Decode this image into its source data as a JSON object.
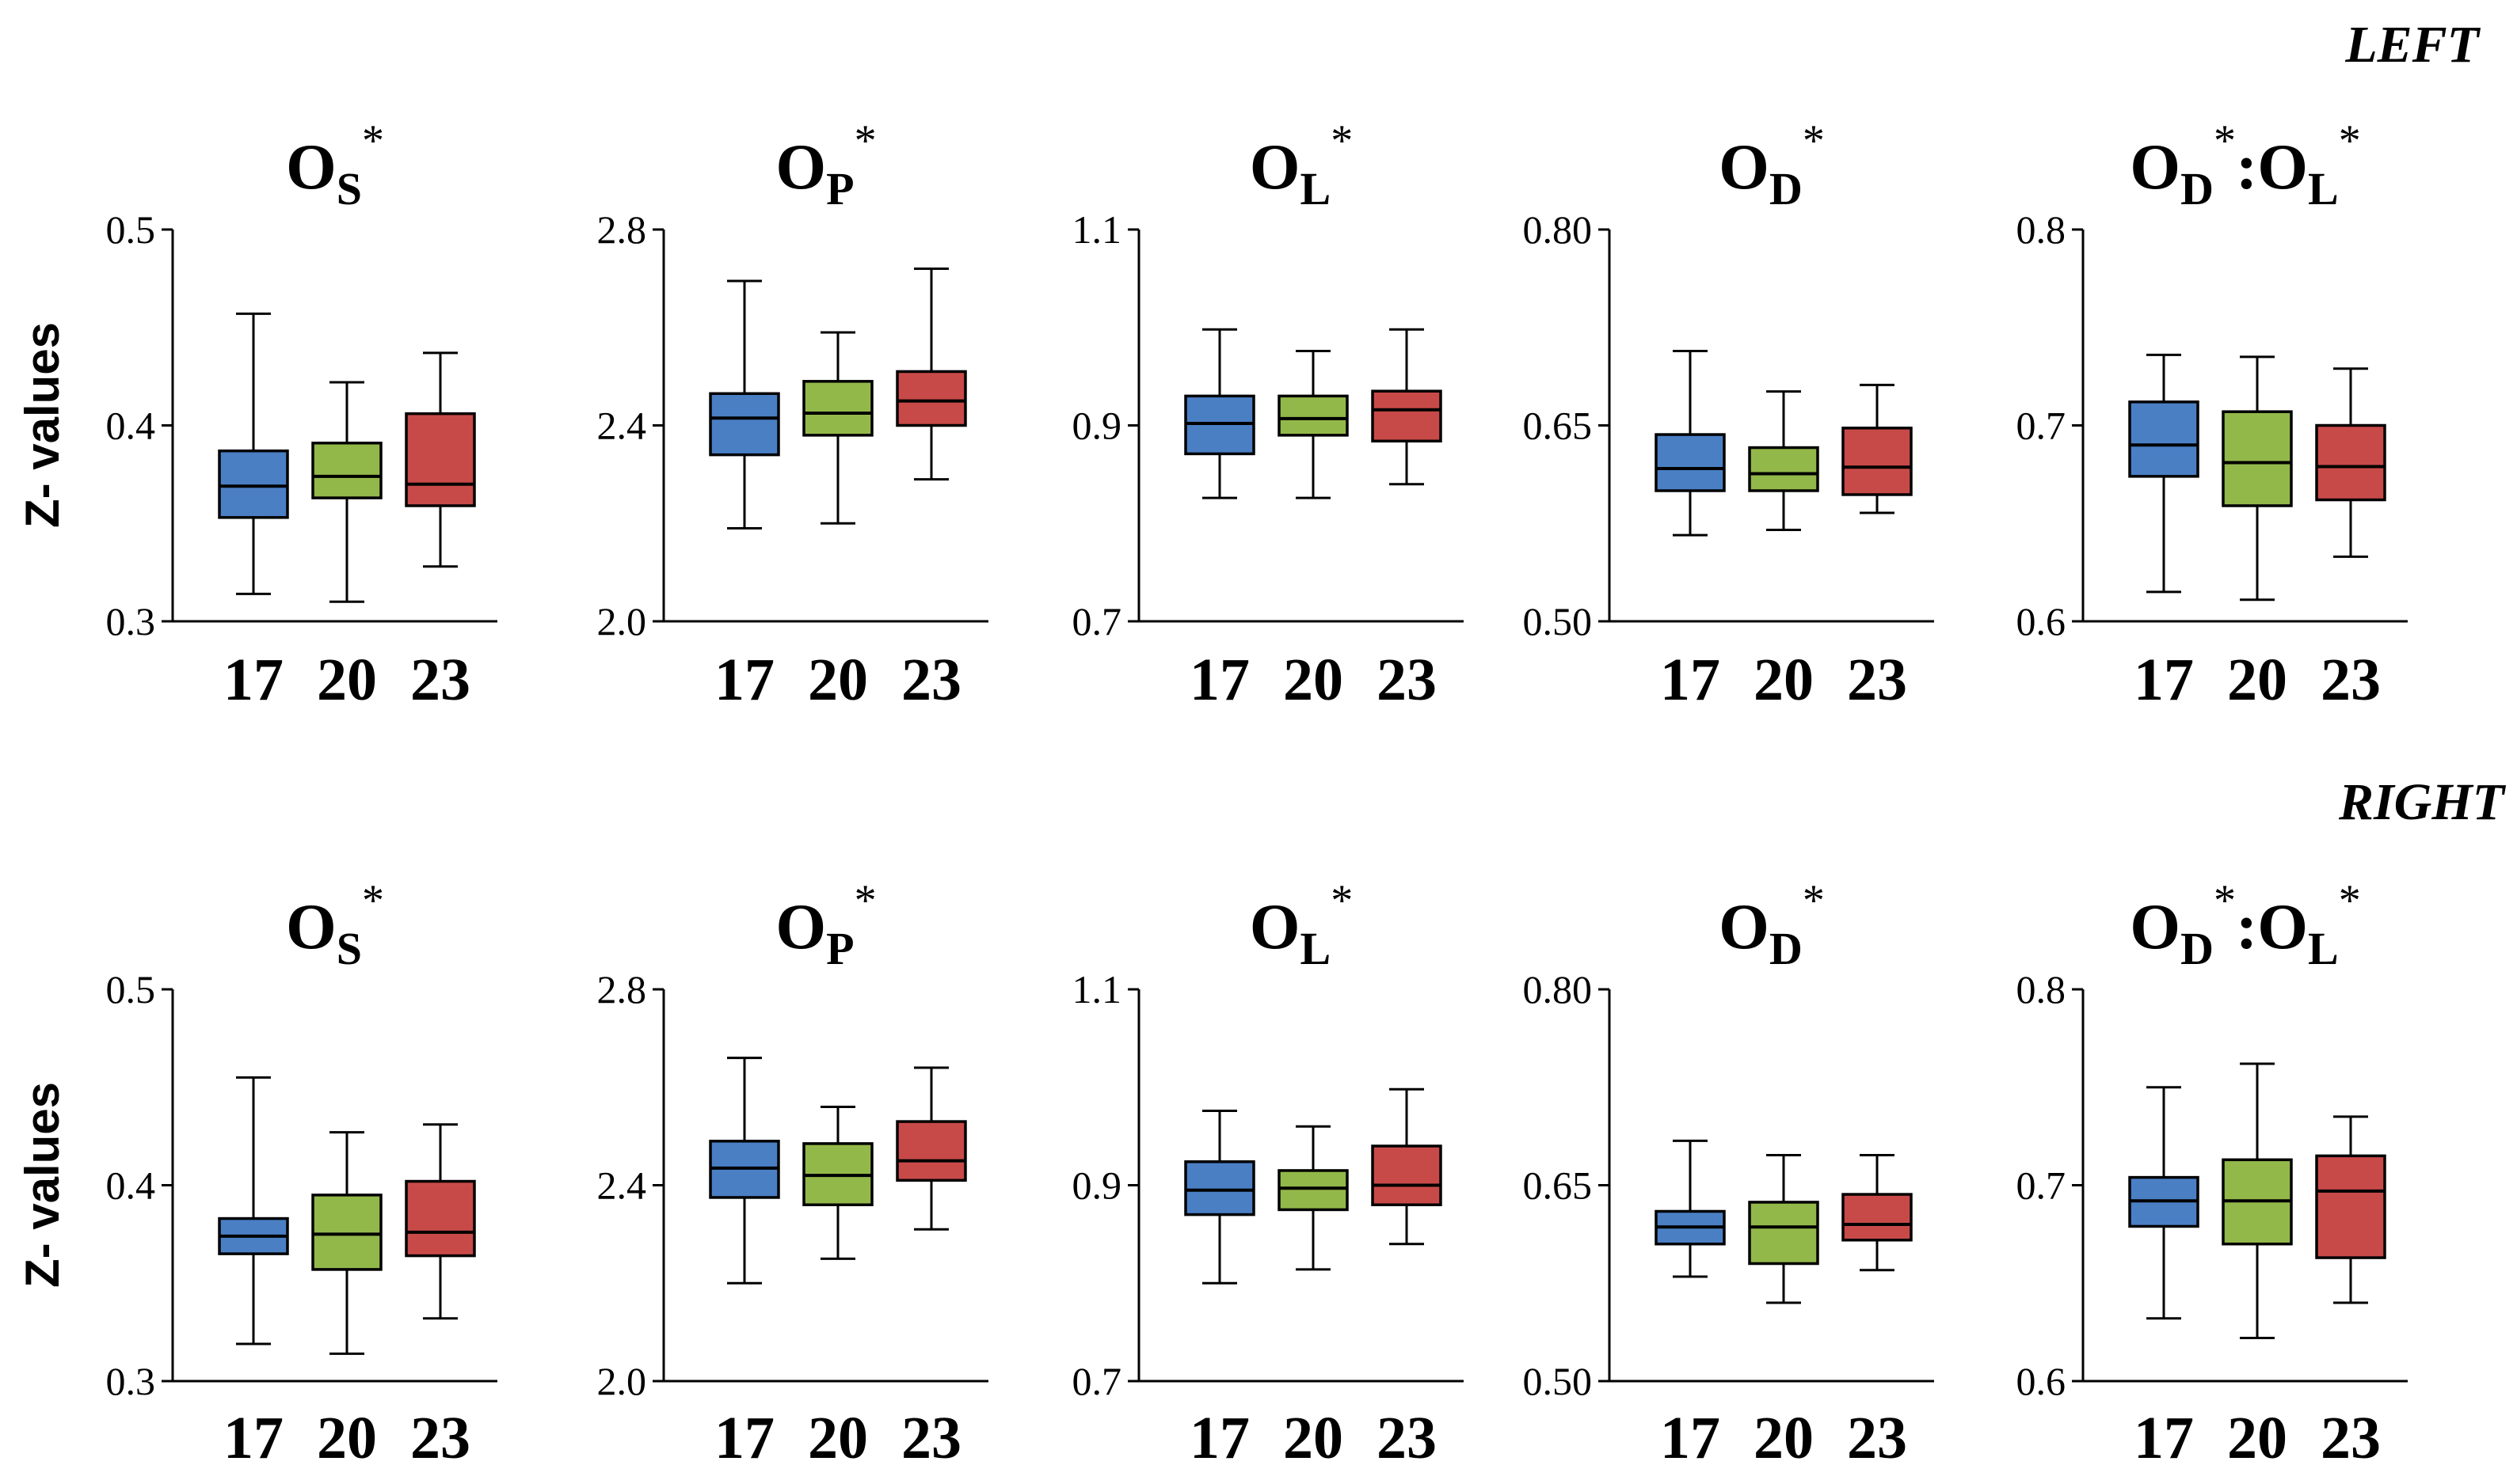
{
  "row_labels": [
    "LEFT",
    "RIGHT"
  ],
  "y_axis_label": "Z- values",
  "group_colors": {
    "17": "#4a7fc4",
    "20": "#93b84a",
    "23": "#c84a48"
  },
  "chart_data": [
    {
      "row": "LEFT",
      "type": "box",
      "title": {
        "base": "O",
        "sub": "S",
        "sup": "*"
      },
      "categories": [
        "17",
        "20",
        "23"
      ],
      "ylim": [
        0.3,
        0.5
      ],
      "yticks": [
        "0.3",
        "0.4",
        "0.5"
      ],
      "ylabel": "Z- values",
      "boxes": [
        {
          "min": 0.314,
          "q1": 0.353,
          "median": 0.369,
          "q3": 0.387,
          "max": 0.457
        },
        {
          "min": 0.31,
          "q1": 0.363,
          "median": 0.374,
          "q3": 0.391,
          "max": 0.422
        },
        {
          "min": 0.328,
          "q1": 0.359,
          "median": 0.37,
          "q3": 0.406,
          "max": 0.437
        }
      ]
    },
    {
      "row": "LEFT",
      "type": "box",
      "title": {
        "base": "O",
        "sub": "P",
        "sup": "*"
      },
      "categories": [
        "17",
        "20",
        "23"
      ],
      "ylim": [
        2.0,
        2.8
      ],
      "yticks": [
        "2.0",
        "2.4",
        "2.8"
      ],
      "ylabel": "",
      "boxes": [
        {
          "min": 2.19,
          "q1": 2.34,
          "median": 2.415,
          "q3": 2.465,
          "max": 2.695
        },
        {
          "min": 2.2,
          "q1": 2.38,
          "median": 2.425,
          "q3": 2.49,
          "max": 2.59
        },
        {
          "min": 2.29,
          "q1": 2.4,
          "median": 2.45,
          "q3": 2.51,
          "max": 2.72
        }
      ]
    },
    {
      "row": "LEFT",
      "type": "box",
      "title": {
        "base": "O",
        "sub": "L",
        "sup": "*"
      },
      "categories": [
        "17",
        "20",
        "23"
      ],
      "ylim": [
        0.7,
        1.1
      ],
      "yticks": [
        "0.7",
        "0.9",
        "1.1"
      ],
      "ylabel": "",
      "boxes": [
        {
          "min": 0.826,
          "q1": 0.871,
          "median": 0.902,
          "q3": 0.93,
          "max": 0.998
        },
        {
          "min": 0.826,
          "q1": 0.89,
          "median": 0.907,
          "q3": 0.93,
          "max": 0.976
        },
        {
          "min": 0.84,
          "q1": 0.884,
          "median": 0.916,
          "q3": 0.935,
          "max": 0.998
        }
      ]
    },
    {
      "row": "LEFT",
      "type": "box",
      "title": {
        "base": "O",
        "sub": "D",
        "sup": "*"
      },
      "categories": [
        "17",
        "20",
        "23"
      ],
      "ylim": [
        0.5,
        0.8
      ],
      "yticks": [
        "0.50",
        "0.65",
        "0.80"
      ],
      "ylabel": "",
      "boxes": [
        {
          "min": 0.566,
          "q1": 0.6,
          "median": 0.617,
          "q3": 0.643,
          "max": 0.707
        },
        {
          "min": 0.57,
          "q1": 0.6,
          "median": 0.613,
          "q3": 0.633,
          "max": 0.676
        },
        {
          "min": 0.583,
          "q1": 0.597,
          "median": 0.618,
          "q3": 0.648,
          "max": 0.681
        }
      ]
    },
    {
      "row": "LEFT",
      "type": "box",
      "title": {
        "base": "O",
        "sub": "D",
        "sup": "*",
        "base2": ":O",
        "sub2": "L",
        "sup2": "*"
      },
      "categories": [
        "17",
        "20",
        "23"
      ],
      "ylim": [
        0.6,
        0.8
      ],
      "yticks": [
        "0.6",
        "0.7",
        "0.8"
      ],
      "ylabel": "",
      "boxes": [
        {
          "min": 0.615,
          "q1": 0.674,
          "median": 0.69,
          "q3": 0.712,
          "max": 0.736
        },
        {
          "min": 0.611,
          "q1": 0.659,
          "median": 0.681,
          "q3": 0.707,
          "max": 0.735
        },
        {
          "min": 0.633,
          "q1": 0.662,
          "median": 0.679,
          "q3": 0.7,
          "max": 0.729
        }
      ]
    },
    {
      "row": "RIGHT",
      "type": "box",
      "title": {
        "base": "O",
        "sub": "S",
        "sup": "*"
      },
      "categories": [
        "17",
        "20",
        "23"
      ],
      "ylim": [
        0.3,
        0.5
      ],
      "yticks": [
        "0.3",
        "0.4",
        "0.5"
      ],
      "ylabel": "Z- values",
      "boxes": [
        {
          "min": 0.319,
          "q1": 0.365,
          "median": 0.374,
          "q3": 0.383,
          "max": 0.455
        },
        {
          "min": 0.314,
          "q1": 0.357,
          "median": 0.375,
          "q3": 0.395,
          "max": 0.427
        },
        {
          "min": 0.332,
          "q1": 0.364,
          "median": 0.376,
          "q3": 0.402,
          "max": 0.431
        }
      ]
    },
    {
      "row": "RIGHT",
      "type": "box",
      "title": {
        "base": "O",
        "sub": "P",
        "sup": "*"
      },
      "categories": [
        "17",
        "20",
        "23"
      ],
      "ylim": [
        2.0,
        2.8
      ],
      "yticks": [
        "2.0",
        "2.4",
        "2.8"
      ],
      "ylabel": "",
      "boxes": [
        {
          "min": 2.2,
          "q1": 2.375,
          "median": 2.435,
          "q3": 2.49,
          "max": 2.66
        },
        {
          "min": 2.25,
          "q1": 2.36,
          "median": 2.42,
          "q3": 2.485,
          "max": 2.56
        },
        {
          "min": 2.31,
          "q1": 2.41,
          "median": 2.45,
          "q3": 2.53,
          "max": 2.64
        }
      ]
    },
    {
      "row": "RIGHT",
      "type": "box",
      "title": {
        "base": "O",
        "sub": "L",
        "sup": "*"
      },
      "categories": [
        "17",
        "20",
        "23"
      ],
      "ylim": [
        0.7,
        1.1
      ],
      "yticks": [
        "0.7",
        "0.9",
        "1.1"
      ],
      "ylabel": "",
      "boxes": [
        {
          "min": 0.8,
          "q1": 0.87,
          "median": 0.895,
          "q3": 0.924,
          "max": 0.976
        },
        {
          "min": 0.814,
          "q1": 0.875,
          "median": 0.897,
          "q3": 0.915,
          "max": 0.96
        },
        {
          "min": 0.84,
          "q1": 0.88,
          "median": 0.9,
          "q3": 0.94,
          "max": 0.998
        }
      ]
    },
    {
      "row": "RIGHT",
      "type": "box",
      "title": {
        "base": "O",
        "sub": "D",
        "sup": "*"
      },
      "categories": [
        "17",
        "20",
        "23"
      ],
      "ylim": [
        0.5,
        0.8
      ],
      "yticks": [
        "0.50",
        "0.65",
        "0.80"
      ],
      "ylabel": "",
      "boxes": [
        {
          "min": 0.58,
          "q1": 0.605,
          "median": 0.618,
          "q3": 0.63,
          "max": 0.684
        },
        {
          "min": 0.56,
          "q1": 0.59,
          "median": 0.618,
          "q3": 0.637,
          "max": 0.673
        },
        {
          "min": 0.585,
          "q1": 0.608,
          "median": 0.62,
          "q3": 0.643,
          "max": 0.673
        }
      ]
    },
    {
      "row": "RIGHT",
      "type": "box",
      "title": {
        "base": "O",
        "sub": "D",
        "sup": "*",
        "base2": ":O",
        "sub2": "L",
        "sup2": "*"
      },
      "categories": [
        "17",
        "20",
        "23"
      ],
      "ylim": [
        0.6,
        0.8
      ],
      "yticks": [
        "0.6",
        "0.7",
        "0.8"
      ],
      "ylabel": "",
      "boxes": [
        {
          "min": 0.632,
          "q1": 0.679,
          "median": 0.692,
          "q3": 0.704,
          "max": 0.75
        },
        {
          "min": 0.622,
          "q1": 0.67,
          "median": 0.692,
          "q3": 0.713,
          "max": 0.762
        },
        {
          "min": 0.64,
          "q1": 0.663,
          "median": 0.697,
          "q3": 0.715,
          "max": 0.735
        }
      ]
    }
  ]
}
